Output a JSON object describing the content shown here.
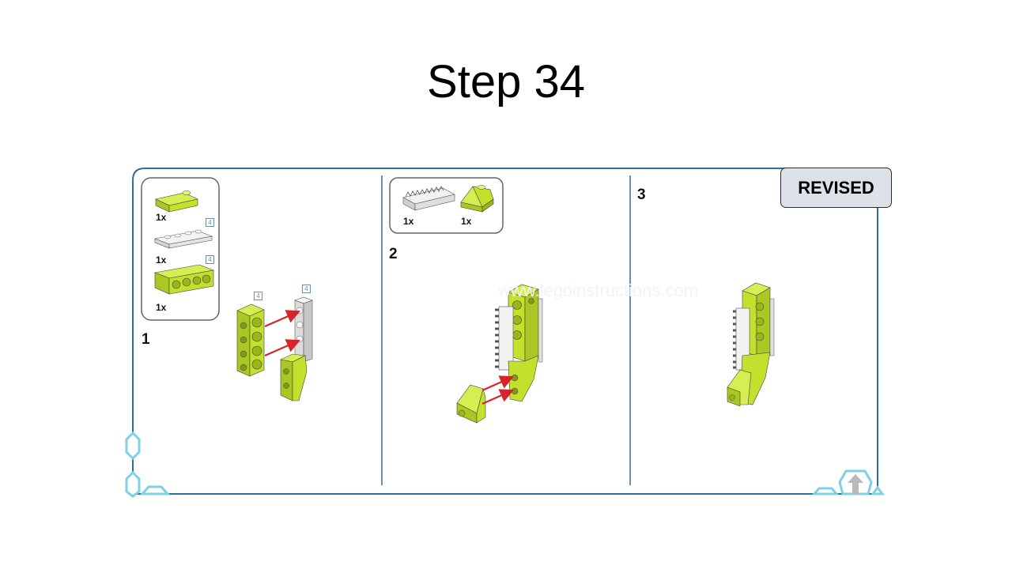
{
  "slide": {
    "title": "Step 34",
    "badge": "REVISED"
  },
  "watermark": "www.legoinstructions.com",
  "step1": {
    "number": "1",
    "inventory": [
      {
        "qty": "1x",
        "part": "lime-slope-brick"
      },
      {
        "qty": "1x",
        "part": "white-plate-1x4",
        "size_tag": "4"
      },
      {
        "qty": "1x",
        "part": "lime-technic-brick-1x4",
        "size_tag": "4"
      }
    ],
    "size_tags": [
      "4",
      "4"
    ]
  },
  "step2": {
    "number": "2",
    "inventory": [
      {
        "qty": "1x",
        "part": "white-gear-rack"
      },
      {
        "qty": "1x",
        "part": "lime-slope-brick"
      }
    ]
  },
  "step3": {
    "number": "3"
  },
  "colors": {
    "frame": "#2f6f9c",
    "lime": "#c8e62e",
    "lime_dark": "#98b81a",
    "arrow": "#d6242a",
    "hex_icon": "#7fd0e6"
  }
}
